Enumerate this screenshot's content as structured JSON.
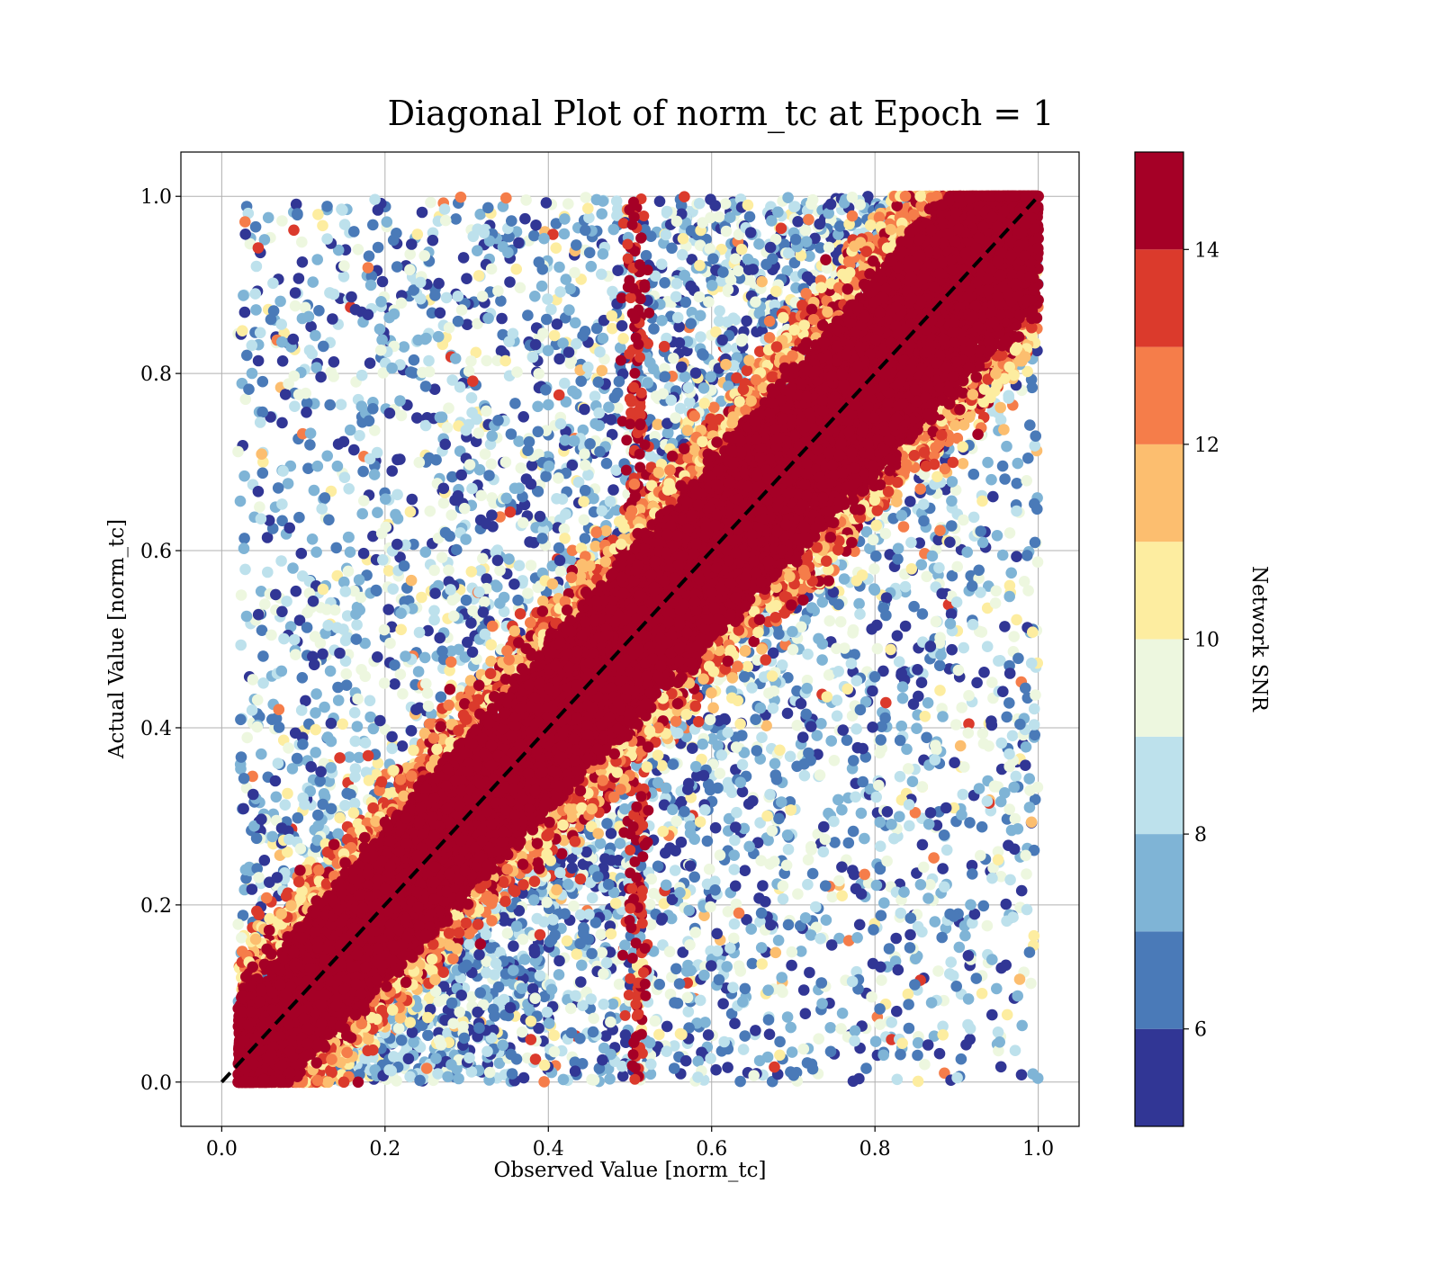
{
  "chart_data": {
    "type": "scatter",
    "title": "Diagonal Plot of norm_tc at Epoch = 1",
    "xlabel": "Observed Value [norm_tc]",
    "ylabel": "Actual Value [norm_tc]",
    "xlim": [
      -0.05,
      1.05
    ],
    "ylim": [
      -0.05,
      1.05
    ],
    "xticks": [
      "0.0",
      "0.2",
      "0.4",
      "0.6",
      "0.8",
      "1.0"
    ],
    "yticks": [
      "0.0",
      "0.2",
      "0.4",
      "0.6",
      "0.8",
      "1.0"
    ],
    "xtick_values": [
      0.0,
      0.2,
      0.4,
      0.6,
      0.8,
      1.0
    ],
    "ytick_values": [
      0.0,
      0.2,
      0.4,
      0.6,
      0.8,
      1.0
    ],
    "grid": true,
    "reference_line": {
      "from": [
        0,
        0
      ],
      "to": [
        1,
        1
      ],
      "style": "dashed",
      "color": "#000000"
    },
    "colorbar": {
      "label": "Network SNR",
      "range": [
        5,
        15
      ],
      "ticks": [
        "6",
        "8",
        "10",
        "12",
        "14"
      ],
      "tick_values": [
        6,
        8,
        10,
        12,
        14
      ],
      "bins": [
        {
          "from": 5,
          "to": 6,
          "color": "#313695"
        },
        {
          "from": 6,
          "to": 7,
          "color": "#4a7ab8"
        },
        {
          "from": 7,
          "to": 8,
          "color": "#7fb4d6"
        },
        {
          "from": 8,
          "to": 9,
          "color": "#bde1ec"
        },
        {
          "from": 9,
          "to": 10,
          "color": "#edf7df"
        },
        {
          "from": 10,
          "to": 11,
          "color": "#fdeda0"
        },
        {
          "from": 11,
          "to": 12,
          "color": "#fcbe6f"
        },
        {
          "from": 12,
          "to": 13,
          "color": "#f57d4a"
        },
        {
          "from": 13,
          "to": 14,
          "color": "#db3a2c"
        },
        {
          "from": 14,
          "to": 15,
          "color": "#a50026"
        }
      ]
    },
    "series": [
      {
        "description_shape": "dense diagonal band around y = x for high SNR; scattered off-diagonal points for low SNR",
        "sample_points": [
          {
            "x": 0.06,
            "y": 0.99,
            "snr": 6
          },
          {
            "x": 0.14,
            "y": 1.0,
            "snr": 5
          },
          {
            "x": 0.11,
            "y": 0.86,
            "snr": 5
          },
          {
            "x": 0.08,
            "y": 0.65,
            "snr": 5
          },
          {
            "x": 0.07,
            "y": 0.54,
            "snr": 5
          },
          {
            "x": 0.11,
            "y": 0.42,
            "snr": 5
          },
          {
            "x": 0.08,
            "y": 0.3,
            "snr": 9
          },
          {
            "x": 0.5,
            "y": 0.9,
            "snr": 14
          },
          {
            "x": 0.52,
            "y": 0.7,
            "snr": 14
          },
          {
            "x": 0.51,
            "y": 0.25,
            "snr": 14
          },
          {
            "x": 0.52,
            "y": 0.1,
            "snr": 14
          },
          {
            "x": 0.9,
            "y": 0.0,
            "snr": 5
          },
          {
            "x": 0.99,
            "y": 0.05,
            "snr": 5
          },
          {
            "x": 1.0,
            "y": 0.13,
            "snr": 5
          },
          {
            "x": 1.0,
            "y": 0.52,
            "snr": 5
          },
          {
            "x": 0.98,
            "y": 0.39,
            "snr": 5
          },
          {
            "x": 0.95,
            "y": 0.17,
            "snr": 7
          },
          {
            "x": 0.3,
            "y": 1.0,
            "snr": 5
          },
          {
            "x": 0.4,
            "y": 0.95,
            "snr": 7
          },
          {
            "x": 0.7,
            "y": 0.95,
            "snr": 8
          },
          {
            "x": 0.3,
            "y": 0.05,
            "snr": 9
          },
          {
            "x": 0.4,
            "y": 0.15,
            "snr": 8
          },
          {
            "x": 0.7,
            "y": 0.3,
            "snr": 6
          },
          {
            "x": 0.8,
            "y": 0.2,
            "snr": 5
          },
          {
            "x": 0.35,
            "y": 0.6,
            "snr": 6
          },
          {
            "x": 0.2,
            "y": 0.45,
            "snr": 7
          },
          {
            "x": 0.85,
            "y": 0.6,
            "snr": 7
          },
          {
            "x": 0.6,
            "y": 0.85,
            "snr": 8
          }
        ]
      }
    ]
  }
}
